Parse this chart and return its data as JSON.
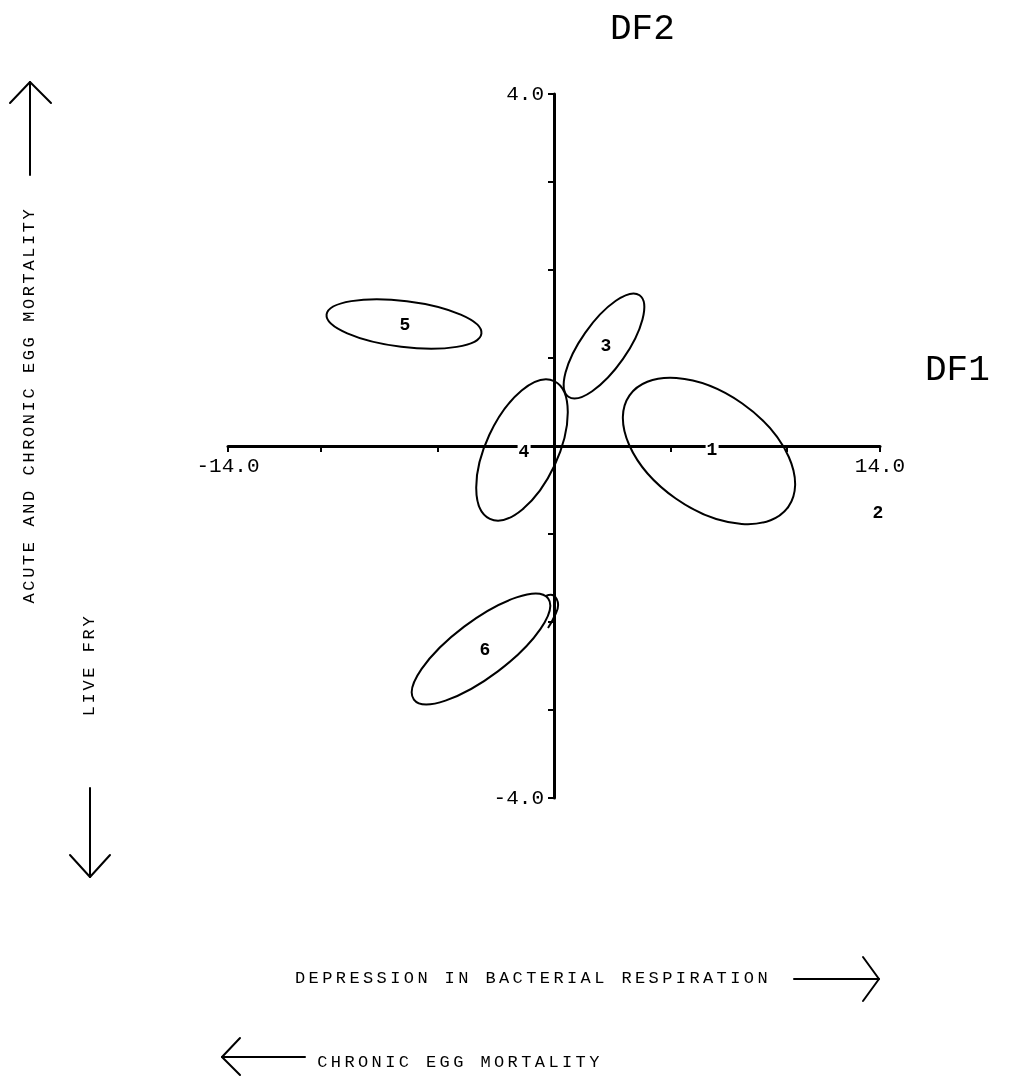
{
  "chart_data": {
    "type": "scatter",
    "xlabel": "DF1",
    "ylabel": "DF2",
    "xlim": [
      -14,
      14
    ],
    "xticks": [
      {
        "value": -14,
        "label": "-14.0"
      },
      {
        "value": -10,
        "label": null
      },
      {
        "value": -5,
        "label": null
      },
      {
        "value": 5,
        "label": null
      },
      {
        "value": 10,
        "label": null
      },
      {
        "value": 14,
        "label": "14.0"
      }
    ],
    "ylim": [
      -4,
      4
    ],
    "yticks": [
      {
        "value": -4,
        "label": "-4.0"
      },
      {
        "value": -3,
        "label": null
      },
      {
        "value": -2,
        "label": null
      },
      {
        "value": -1,
        "label": null
      },
      {
        "value": 1,
        "label": null
      },
      {
        "value": 2,
        "label": null
      },
      {
        "value": 3,
        "label": null
      },
      {
        "value": 4,
        "label": "4.0"
      }
    ],
    "grid": false,
    "annotations": [
      "1",
      "2",
      "3",
      "4",
      "5",
      "6",
      "ACUTE AND CHRONIC EGG MORTALITY",
      "LIVE FRY",
      "DEPRESSION IN BACTERIAL RESPIRATION",
      "CHRONIC EGG MORTALITY"
    ]
  }
}
